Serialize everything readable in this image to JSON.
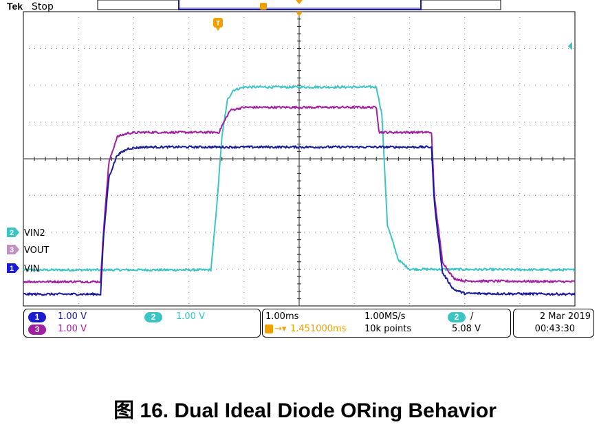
{
  "header": {
    "brand": "Tek",
    "run_state": "Stop"
  },
  "caption": "图 16. Dual Ideal Diode ORing Behavior",
  "markers": {
    "trigger_marker": "T",
    "channel_markers": [
      "2",
      "3",
      "1"
    ]
  },
  "colors": {
    "ch1": "#1a1a9a",
    "ch2": "#3cc4c4",
    "ch3": "#a020a0",
    "trigger": "#f0a000"
  },
  "status": {
    "ch1": {
      "num": "1",
      "scale": "1.00 V"
    },
    "ch2": {
      "num": "2",
      "scale": "1.00 V"
    },
    "ch3": {
      "num": "3",
      "scale": "1.00 V"
    },
    "timebase": "1.00ms",
    "sample_rate": "1.00MS/s",
    "trigger_delay": "1.451000ms",
    "record_length": "10k points",
    "trigger_source": "2",
    "trigger_level": "5.08 V",
    "date": "2 Mar  2019",
    "time": "00:43:30"
  },
  "chart_data": {
    "type": "line",
    "title": "",
    "x_unit": "ms",
    "y_unit": "V",
    "xlim": [
      0,
      10
    ],
    "ylim": [
      0,
      8
    ],
    "grid": true,
    "series": [
      {
        "name": "VIN2",
        "channel": "2",
        "color": "#3cc4c4",
        "x": [
          0,
          3.4,
          3.5,
          3.6,
          3.7,
          3.8,
          4.0,
          6.4,
          6.5,
          6.6,
          6.8,
          7.0,
          10
        ],
        "y": [
          0.98,
          0.98,
          2.6,
          4.6,
          5.6,
          5.86,
          5.95,
          5.95,
          5.2,
          2.2,
          1.25,
          1.0,
          0.98
        ]
      },
      {
        "name": "VOUT",
        "channel": "3",
        "color": "#a020a0",
        "x": [
          0,
          1.4,
          1.45,
          1.55,
          1.7,
          1.9,
          2.2,
          3.55,
          3.6,
          3.75,
          4.0,
          6.4,
          6.45,
          7.4,
          7.45,
          7.6,
          7.8,
          8.0,
          10
        ],
        "y": [
          0.66,
          0.66,
          2.0,
          3.9,
          4.6,
          4.7,
          4.72,
          4.72,
          4.9,
          5.32,
          5.4,
          5.4,
          4.72,
          4.72,
          3.0,
          1.2,
          0.75,
          0.68,
          0.66
        ]
      },
      {
        "name": "VIN",
        "channel": "1",
        "color": "#1a1a9a",
        "x": [
          0,
          1.4,
          1.45,
          1.55,
          1.7,
          1.9,
          2.2,
          7.4,
          7.45,
          7.6,
          7.8,
          8.0,
          10
        ],
        "y": [
          0.32,
          0.32,
          1.8,
          3.5,
          4.1,
          4.28,
          4.32,
          4.32,
          2.8,
          0.9,
          0.45,
          0.34,
          0.32
        ]
      }
    ]
  }
}
